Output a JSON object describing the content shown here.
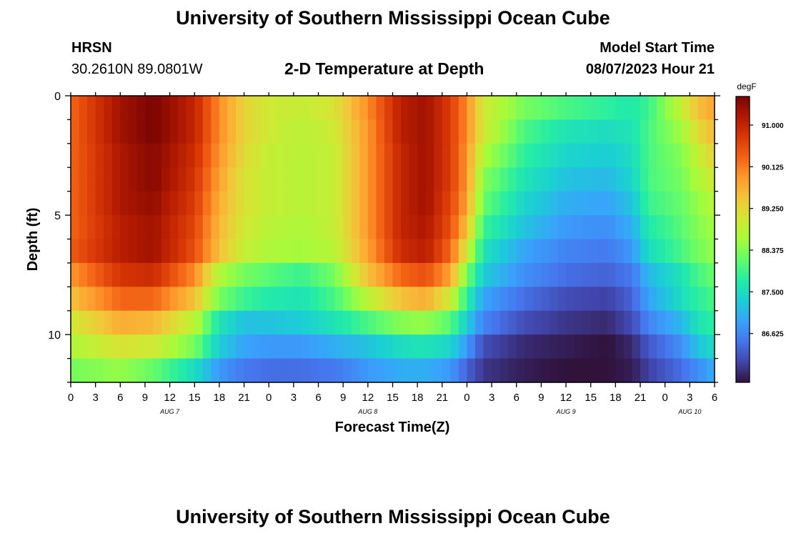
{
  "page": {
    "title": "University of Southern Mississippi Ocean Cube",
    "footer_title": "University of Southern Mississippi Ocean Cube",
    "station_id": "HRSN",
    "coords": "30.2610N  89.0801W",
    "subtitle": "2-D Temperature at Depth",
    "model_start_label": "Model Start Time",
    "model_start_value": "08/07/2023 Hour 21"
  },
  "chart_data": {
    "type": "heatmap",
    "title": "2-D Temperature at Depth",
    "xlabel": "Forecast Time(Z)",
    "ylabel": "Depth (ft)",
    "colorbar_label": "degF",
    "x_hours_range": [
      0,
      78
    ],
    "y_depth_range": [
      0,
      12
    ],
    "x_tick_labels": [
      "0",
      "3",
      "6",
      "9",
      "12",
      "15",
      "18",
      "21",
      "0",
      "3",
      "6",
      "9",
      "12",
      "15",
      "18",
      "21",
      "0",
      "3",
      "6",
      "9",
      "12",
      "15",
      "18",
      "21",
      "0",
      "3",
      "6"
    ],
    "x_tick_hours": [
      0,
      3,
      6,
      9,
      12,
      15,
      18,
      21,
      24,
      27,
      30,
      33,
      36,
      39,
      42,
      45,
      48,
      51,
      54,
      57,
      60,
      63,
      66,
      69,
      72,
      75,
      78
    ],
    "date_labels": [
      {
        "text": "AUG 7",
        "hour": 12
      },
      {
        "text": "AUG 8",
        "hour": 36
      },
      {
        "text": "AUG 9",
        "hour": 60
      },
      {
        "text": "AUG 10",
        "hour": 75
      }
    ],
    "y_tick_labels": [
      "0",
      "5",
      "10"
    ],
    "y_tick_values": [
      0,
      5,
      10
    ],
    "colorbar_ticks": [
      "91.000",
      "90.125",
      "89.250",
      "88.375",
      "87.500",
      "86.625"
    ],
    "colorbar_tick_values": [
      91.0,
      90.125,
      89.25,
      88.375,
      87.5,
      86.625
    ],
    "vmin": 85.6,
    "vmax": 91.6,
    "depth_levels_ft": [
      0.5,
      1.5,
      2.5,
      3.5,
      4.5,
      5.5,
      6.5,
      7.5,
      8.5,
      9.5,
      10.5,
      11.5
    ],
    "hours": [
      0,
      6,
      10,
      15,
      18,
      21,
      24,
      28,
      32,
      36,
      40,
      43,
      46,
      48,
      50,
      55,
      60,
      65,
      68,
      70,
      74,
      76,
      78
    ],
    "temperature_degF": [
      [
        90.3,
        91.3,
        91.6,
        91.0,
        90.0,
        89.3,
        89.0,
        88.9,
        89.1,
        90.0,
        91.1,
        91.3,
        90.7,
        90.0,
        89.0,
        88.3,
        88.0,
        87.8,
        87.7,
        87.9,
        88.9,
        89.5,
        89.8
      ],
      [
        90.3,
        91.3,
        91.6,
        91.0,
        90.0,
        89.3,
        89.0,
        88.8,
        89.0,
        89.9,
        91.1,
        91.3,
        90.7,
        90.0,
        89.0,
        88.0,
        87.6,
        87.5,
        87.6,
        88.0,
        88.6,
        89.2,
        89.6
      ],
      [
        90.3,
        91.2,
        91.5,
        90.9,
        89.9,
        89.2,
        88.9,
        88.8,
        88.9,
        89.9,
        91.0,
        91.3,
        90.7,
        89.9,
        88.7,
        87.8,
        87.4,
        87.3,
        87.5,
        88.0,
        88.4,
        88.9,
        89.3
      ],
      [
        90.3,
        91.2,
        91.5,
        90.8,
        89.8,
        89.1,
        88.9,
        88.8,
        88.9,
        89.9,
        91.0,
        91.3,
        90.7,
        89.9,
        88.4,
        87.6,
        87.2,
        87.1,
        87.4,
        88.0,
        88.3,
        88.7,
        89.0
      ],
      [
        90.3,
        91.2,
        91.4,
        90.7,
        89.7,
        89.1,
        88.9,
        88.8,
        88.9,
        89.9,
        91.0,
        91.3,
        90.6,
        89.8,
        88.2,
        87.4,
        87.0,
        86.9,
        87.2,
        87.9,
        88.2,
        88.5,
        88.8
      ],
      [
        90.3,
        91.1,
        91.3,
        90.6,
        89.6,
        89.0,
        88.8,
        88.7,
        88.9,
        89.9,
        91.0,
        91.2,
        90.5,
        89.5,
        87.9,
        87.2,
        86.8,
        86.7,
        87.0,
        87.7,
        88.1,
        88.4,
        88.6
      ],
      [
        90.4,
        91.1,
        91.3,
        90.5,
        89.5,
        88.9,
        88.7,
        88.6,
        88.8,
        89.8,
        90.9,
        91.1,
        90.3,
        89.0,
        87.6,
        86.9,
        86.6,
        86.5,
        86.8,
        87.5,
        88.0,
        88.3,
        88.5
      ],
      [
        89.9,
        90.8,
        90.9,
        90.0,
        88.7,
        88.3,
        88.1,
        87.9,
        88.3,
        89.5,
        90.3,
        90.5,
        89.8,
        88.3,
        87.3,
        86.7,
        86.4,
        86.3,
        86.5,
        87.1,
        87.6,
        88.0,
        88.2
      ],
      [
        89.5,
        90.3,
        90.3,
        89.5,
        88.3,
        87.9,
        87.7,
        87.6,
        88.0,
        88.8,
        89.5,
        89.7,
        89.0,
        87.8,
        86.9,
        86.4,
        86.1,
        86.0,
        86.3,
        86.9,
        87.5,
        87.8,
        88.0
      ],
      [
        89.0,
        89.7,
        89.6,
        88.8,
        87.6,
        87.2,
        87.2,
        87.3,
        87.6,
        88.0,
        88.4,
        88.5,
        88.1,
        87.3,
        86.6,
        86.1,
        85.9,
        85.8,
        86.1,
        86.6,
        87.1,
        87.6,
        87.8
      ],
      [
        88.7,
        89.1,
        89.0,
        88.3,
        87.3,
        86.9,
        86.8,
        86.8,
        87.0,
        87.2,
        87.5,
        87.6,
        87.4,
        86.8,
        86.1,
        85.8,
        85.7,
        85.6,
        85.8,
        86.2,
        86.7,
        87.2,
        87.5
      ],
      [
        88.3,
        88.5,
        88.2,
        87.5,
        86.8,
        86.5,
        86.4,
        86.4,
        86.5,
        86.8,
        87.0,
        87.0,
        86.8,
        86.3,
        85.9,
        85.7,
        85.6,
        85.6,
        85.7,
        86.0,
        86.4,
        86.7,
        87.0
      ]
    ],
    "colormap": [
      "#30123b",
      "#4145ab",
      "#4675ed",
      "#39a2fc",
      "#1bcfd4",
      "#24eca6",
      "#61fc6c",
      "#a4fc3b",
      "#d1e834",
      "#f3c63a",
      "#fe9b2d",
      "#f36315",
      "#d93806",
      "#b11901",
      "#7a0402"
    ]
  }
}
